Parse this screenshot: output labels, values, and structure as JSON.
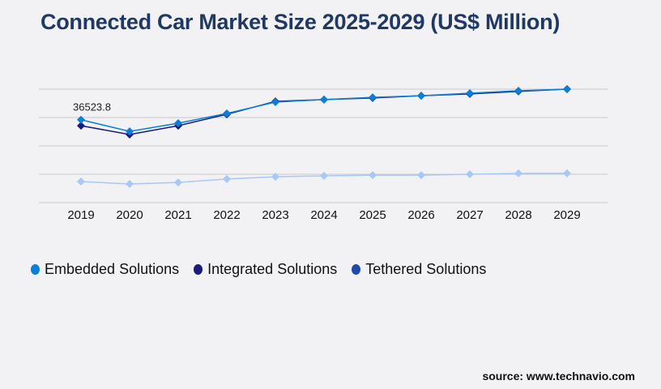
{
  "title": "Connected Car Market Size 2025-2029 (US$ Million)",
  "source": "source: www.technavio.com",
  "chart_data": {
    "type": "line",
    "title": "Connected Car Market Size 2025-2029 (US$ Million)",
    "categories": [
      "2019",
      "2020",
      "2021",
      "2022",
      "2023",
      "2024",
      "2025",
      "2026",
      "2027",
      "2028",
      "2029"
    ],
    "ylim": [
      0,
      50000
    ],
    "grid": true,
    "legend": "bottom-left",
    "series": [
      {
        "name": "Embedded Solutions",
        "color": "#0a7fd6",
        "values": [
          36523.8,
          31400,
          35000,
          39300,
          44300,
          45400,
          46400,
          47100,
          48200,
          49300,
          50000
        ]
      },
      {
        "name": "Integrated Solutions",
        "color": "#1a1a7a",
        "values": [
          33900,
          30000,
          33900,
          38900,
          44600,
          45400,
          46100,
          47100,
          47900,
          49000,
          50000
        ]
      },
      {
        "name": "Tethered Solutions",
        "color": "#a8c8f8",
        "legend_color": "#1f4aa8",
        "values": [
          9300,
          8200,
          8900,
          10400,
          11400,
          11800,
          12100,
          12100,
          12500,
          12900,
          12900
        ]
      }
    ],
    "data_labels": [
      {
        "series": "Embedded Solutions",
        "category": "2019",
        "text": "36523.8"
      }
    ]
  }
}
